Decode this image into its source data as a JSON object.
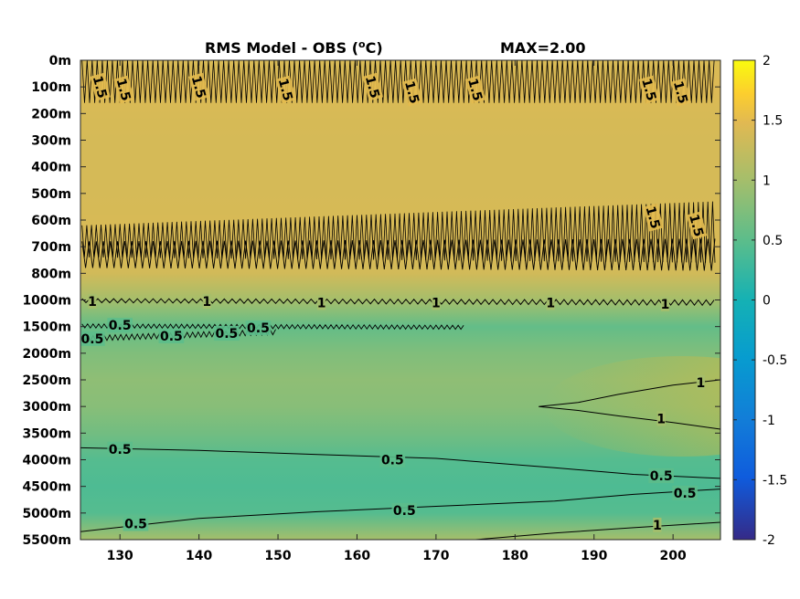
{
  "chart_data": {
    "type": "heatmap",
    "title": "RMS Model - OBS (°C)",
    "title_parts": {
      "main": "RMS Model - OBS (",
      "sup": "o",
      "unit": "C)"
    },
    "max_label": "MAX=2.00",
    "x_ticks": [
      "130",
      "140",
      "150",
      "160",
      "170",
      "180",
      "190",
      "200"
    ],
    "x_tick_values": [
      130,
      140,
      150,
      160,
      170,
      180,
      190,
      200
    ],
    "xlim": [
      125,
      206
    ],
    "y_ticks": [
      "0m",
      "100m",
      "200m",
      "300m",
      "400m",
      "500m",
      "600m",
      "700m",
      "800m",
      "1000m",
      "1500m",
      "2000m",
      "2500m",
      "3000m",
      "3500m",
      "4000m",
      "4500m",
      "5000m",
      "5500m"
    ],
    "colorbar": {
      "range": [
        -2,
        2
      ],
      "ticks": [
        "2",
        "1.5",
        "1",
        "0.5",
        "0",
        "-0.5",
        "-1",
        "-1.5",
        "-2"
      ],
      "tick_values": [
        2,
        1.5,
        1,
        0.5,
        0,
        -0.5,
        -1,
        -1.5,
        -2
      ],
      "colormap": "parula"
    },
    "field": {
      "levels": [
        {
          "depth": "0m",
          "value": 1.4
        },
        {
          "depth": "100m",
          "value": 1.45
        },
        {
          "depth": "200m",
          "value": 1.4
        },
        {
          "depth": "300m",
          "value": 1.38
        },
        {
          "depth": "400m",
          "value": 1.38
        },
        {
          "depth": "500m",
          "value": 1.38
        },
        {
          "depth": "600m",
          "value": 1.4
        },
        {
          "depth": "700m",
          "value": 1.42
        },
        {
          "depth": "800m",
          "value": 1.35
        },
        {
          "depth": "1000m",
          "value": 1.0
        },
        {
          "depth": "1500m",
          "value": 0.55
        },
        {
          "depth": "2000m",
          "value": 0.75
        },
        {
          "depth": "2500m",
          "value": 0.85
        },
        {
          "depth": "3000m",
          "value": 0.8
        },
        {
          "depth": "3500m",
          "value": 0.65
        },
        {
          "depth": "4000m",
          "value": 0.45
        },
        {
          "depth": "4500m",
          "value": 0.4
        },
        {
          "depth": "5000m",
          "value": 0.45
        },
        {
          "depth": "5500m",
          "value": 1.0
        }
      ],
      "maximum": 2.0
    },
    "contour_labels": [
      {
        "text": "1.5",
        "x": 127.5,
        "depth_index": 1.0
      },
      {
        "text": "1.5",
        "x": 130.5,
        "depth_index": 1.1
      },
      {
        "text": "1.5",
        "x": 140.0,
        "depth_index": 1.0
      },
      {
        "text": "1.5",
        "x": 151.0,
        "depth_index": 1.1
      },
      {
        "text": "1.5",
        "x": 162.0,
        "depth_index": 1.0
      },
      {
        "text": "1.5",
        "x": 167.0,
        "depth_index": 1.2
      },
      {
        "text": "1.5",
        "x": 175.0,
        "depth_index": 1.1
      },
      {
        "text": "1.5",
        "x": 197.0,
        "depth_index": 1.1
      },
      {
        "text": "1.5",
        "x": 201.0,
        "depth_index": 1.2
      },
      {
        "text": "1.5",
        "x": 197.5,
        "depth_index": 5.9
      },
      {
        "text": "1.5",
        "x": 203.0,
        "depth_index": 6.2
      },
      {
        "text": "1",
        "x": 126.5,
        "depth_index": 9.05
      },
      {
        "text": "1",
        "x": 141.0,
        "depth_index": 9.05
      },
      {
        "text": "1",
        "x": 155.5,
        "depth_index": 9.1
      },
      {
        "text": "1",
        "x": 170.0,
        "depth_index": 9.1
      },
      {
        "text": "1",
        "x": 184.5,
        "depth_index": 9.1
      },
      {
        "text": "1",
        "x": 199.0,
        "depth_index": 9.15
      },
      {
        "text": "0.5",
        "x": 130.0,
        "depth_index": 9.95
      },
      {
        "text": "0.5",
        "x": 126.5,
        "depth_index": 10.45
      },
      {
        "text": "0.5",
        "x": 136.5,
        "depth_index": 10.35
      },
      {
        "text": "0.5",
        "x": 143.5,
        "depth_index": 10.25
      },
      {
        "text": "0.5",
        "x": 147.5,
        "depth_index": 10.05
      },
      {
        "text": "1",
        "x": 203.5,
        "depth_index": 12.1
      },
      {
        "text": "1",
        "x": 198.5,
        "depth_index": 13.45
      },
      {
        "text": "0.5",
        "x": 130.0,
        "depth_index": 14.6
      },
      {
        "text": "0.5",
        "x": 164.5,
        "depth_index": 15.0
      },
      {
        "text": "0.5",
        "x": 198.5,
        "depth_index": 15.6
      },
      {
        "text": "0.5",
        "x": 201.5,
        "depth_index": 16.25
      },
      {
        "text": "0.5",
        "x": 166.0,
        "depth_index": 16.9
      },
      {
        "text": "0.5",
        "x": 132.0,
        "depth_index": 17.4
      },
      {
        "text": "1",
        "x": 198.0,
        "depth_index": 17.45
      }
    ]
  }
}
